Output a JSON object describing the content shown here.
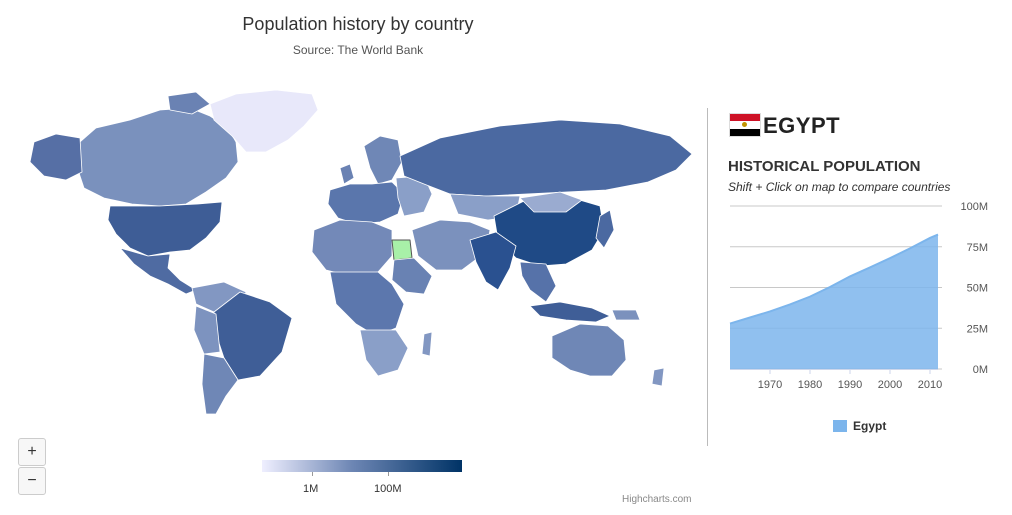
{
  "header": {
    "title": "Population history by country",
    "subtitle": "Source: The World Bank"
  },
  "map": {
    "selected_country": "Egypt",
    "selected_color": "#a8f0a8",
    "color_min": "#efefff",
    "color_max": "#003366",
    "land_color": "#6d86b4",
    "greenland_color": "#e8e8fa"
  },
  "zoom": {
    "in_label": "+",
    "out_label": "−"
  },
  "legend": {
    "labels": [
      "1M",
      "100M"
    ]
  },
  "credits": "Highcharts.com",
  "info_panel": {
    "country_name": "EGYPT",
    "section_title": "HISTORICAL POPULATION",
    "hint": "Shift + Click on map to compare countries",
    "flag_icon": "egypt-flag-icon"
  },
  "chart_data": {
    "type": "area",
    "title": "HISTORICAL POPULATION",
    "x": [
      1960,
      1965,
      1970,
      1975,
      1980,
      1985,
      1990,
      1995,
      2000,
      2005,
      2010,
      2012
    ],
    "series": [
      {
        "name": "Egypt",
        "values": [
          27.9,
          31.6,
          35.3,
          39.6,
          44.4,
          50.3,
          56.8,
          62.3,
          68.0,
          74.0,
          80.4,
          82.5
        ],
        "color": "#7cb5ec"
      }
    ],
    "xticks": [
      1970,
      1980,
      1990,
      2000,
      2010
    ],
    "yticks": [
      "0M",
      "25M",
      "50M",
      "75M",
      "100M"
    ],
    "ylim": [
      0,
      100
    ],
    "xlim": [
      1960,
      2012
    ],
    "grid": true,
    "legend_position": "bottom-center"
  }
}
